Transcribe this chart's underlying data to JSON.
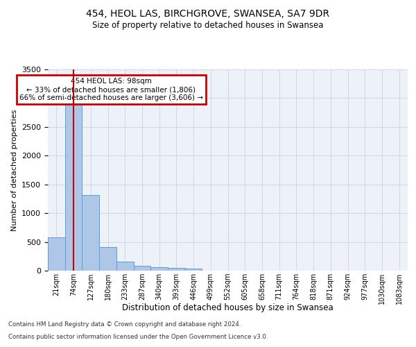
{
  "title1": "454, HEOL LAS, BIRCHGROVE, SWANSEA, SA7 9DR",
  "title2": "Size of property relative to detached houses in Swansea",
  "xlabel": "Distribution of detached houses by size in Swansea",
  "ylabel": "Number of detached properties",
  "bar_labels": [
    "21sqm",
    "74sqm",
    "127sqm",
    "180sqm",
    "233sqm",
    "287sqm",
    "340sqm",
    "393sqm",
    "446sqm",
    "499sqm",
    "552sqm",
    "605sqm",
    "658sqm",
    "711sqm",
    "764sqm",
    "818sqm",
    "871sqm",
    "924sqm",
    "977sqm",
    "1030sqm",
    "1083sqm"
  ],
  "bar_values": [
    575,
    2900,
    1315,
    415,
    155,
    80,
    55,
    45,
    35,
    0,
    0,
    0,
    0,
    0,
    0,
    0,
    0,
    0,
    0,
    0,
    0
  ],
  "bar_color": "#aec6e8",
  "bar_edge_color": "#5a9fd4",
  "grid_color": "#d0d8e8",
  "bg_color": "#eef2f8",
  "redline_x": 1.0,
  "annotation_text": "454 HEOL LAS: 98sqm\n← 33% of detached houses are smaller (1,806)\n66% of semi-detached houses are larger (3,606) →",
  "annotation_box_color": "#ffffff",
  "annotation_border_color": "#cc0000",
  "ylim": [
    0,
    3500
  ],
  "footer1": "Contains HM Land Registry data © Crown copyright and database right 2024.",
  "footer2": "Contains public sector information licensed under the Open Government Licence v3.0."
}
